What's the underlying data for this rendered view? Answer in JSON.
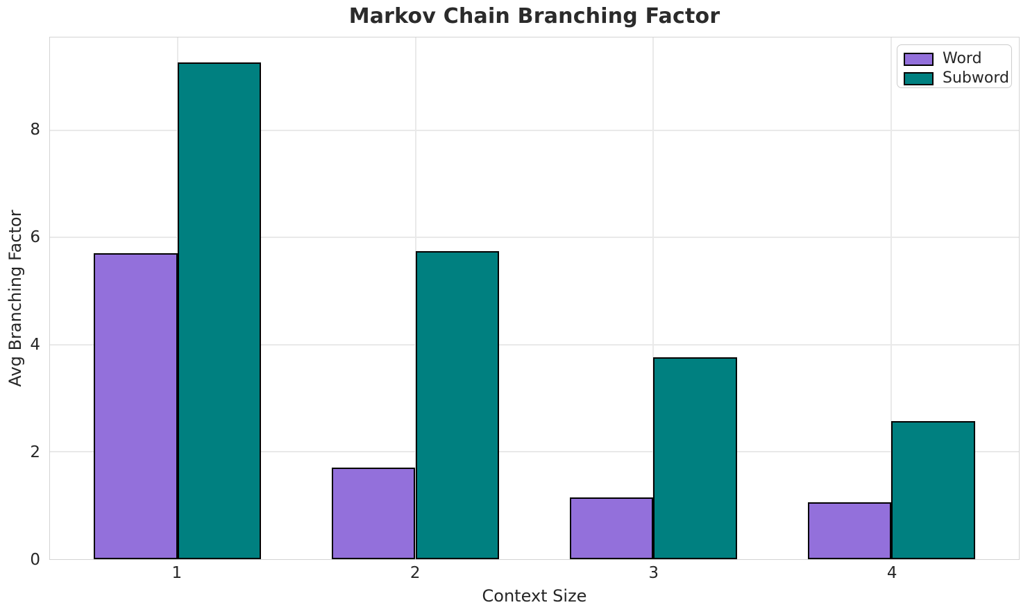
{
  "figure": {
    "title": "Markov Chain Branching Factor",
    "xlabel": "Context Size",
    "ylabel": "Avg Branching Factor"
  },
  "chart_data": {
    "type": "bar",
    "title": "Markov Chain Branching Factor",
    "xlabel": "Context Size",
    "ylabel": "Avg Branching Factor",
    "categories": [
      "1",
      "2",
      "3",
      "4"
    ],
    "x": [
      1,
      2,
      3,
      4
    ],
    "series": [
      {
        "name": "Word",
        "color": "#9370DB",
        "values": [
          5.71,
          1.71,
          1.15,
          1.06
        ]
      },
      {
        "name": "Subword",
        "color": "#008080",
        "values": [
          9.27,
          5.75,
          3.77,
          2.58
        ]
      }
    ],
    "bar_width": 0.35,
    "bar_edge_color": "#000000",
    "xlim": [
      0.465,
      4.535
    ],
    "ylim": [
      0,
      9.73
    ],
    "yticks": [
      0,
      2,
      4,
      6,
      8
    ],
    "grid": true,
    "legend": {
      "position": "upper right",
      "entries": [
        "Word",
        "Subword"
      ]
    }
  },
  "style": {
    "text_color": "#262626",
    "grid_color": "#e9e9e9",
    "spine_color": "#d3d3d3",
    "legend_border_color": "#cccccc",
    "background": "#ffffff"
  }
}
